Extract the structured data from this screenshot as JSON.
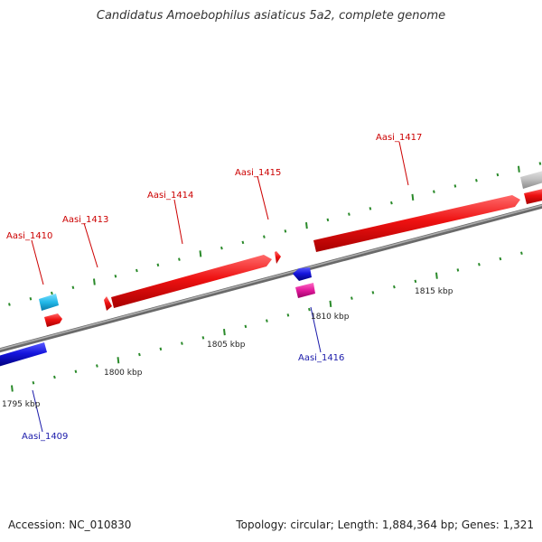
{
  "title": "Candidatus Amoebophilus asiaticus 5a2, complete genome",
  "footer": {
    "accession": "Accession: NC_010830",
    "summary": "Topology: circular; Length: 1,884,364 bp; Genes: 1,321"
  },
  "colors": {
    "forward_gene": "#ee1111",
    "reverse_gene": "#1515dd",
    "cyan_gene": "#22b8e8",
    "magenta_gene": "#e0199a",
    "grey_gene": "#c0c0c0",
    "backbone": "#808080",
    "tick": "#2a8a2a",
    "label_forward": "#cc0000",
    "label_reverse": "#1a1aaa"
  },
  "scale_labels": [
    "1795 kbp",
    "1800 kbp",
    "1805 kbp",
    "1810 kbp",
    "1815 kbp"
  ],
  "gene_labels": [
    {
      "text": "Aasi_1409",
      "strand": "reverse"
    },
    {
      "text": "Aasi_1410",
      "strand": "forward"
    },
    {
      "text": "Aasi_1413",
      "strand": "forward"
    },
    {
      "text": "Aasi_1414",
      "strand": "forward"
    },
    {
      "text": "Aasi_1415",
      "strand": "forward"
    },
    {
      "text": "Aasi_1416",
      "strand": "reverse"
    },
    {
      "text": "Aasi_1417",
      "strand": "forward"
    }
  ]
}
